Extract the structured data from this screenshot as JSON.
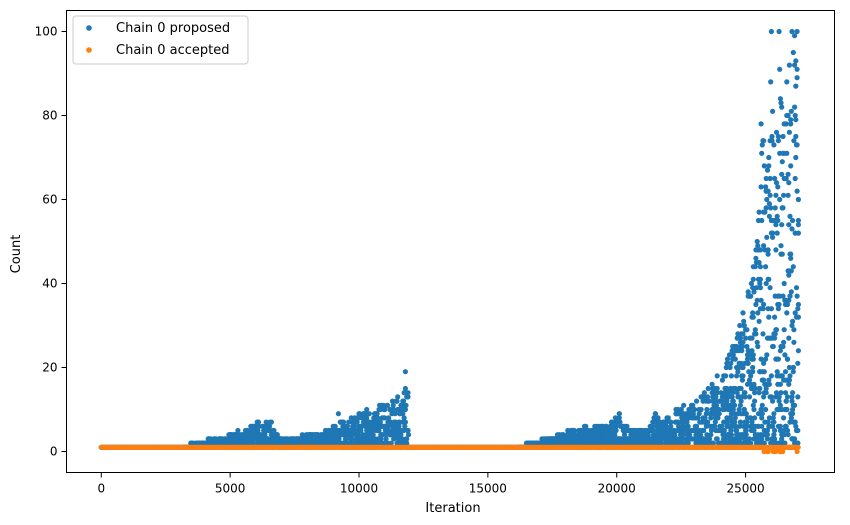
{
  "chart_data": {
    "type": "scatter",
    "title": "",
    "xlabel": "Iteration",
    "ylabel": "Count",
    "xlim": [
      -1350,
      28450
    ],
    "ylim": [
      -5,
      105
    ],
    "xticks": [
      0,
      5000,
      10000,
      15000,
      20000,
      25000
    ],
    "yticks": [
      0,
      20,
      40,
      60,
      80,
      100
    ],
    "legend": {
      "position": "top-left"
    },
    "series": [
      {
        "name": "Chain 0 proposed",
        "color": "#1f77b4",
        "marker": "circle",
        "description_points": [
          [
            0,
            1
          ],
          [
            1000,
            1
          ],
          [
            2000,
            1
          ],
          [
            3000,
            1
          ],
          [
            3800,
            2
          ],
          [
            4200,
            3
          ],
          [
            4600,
            3
          ],
          [
            5000,
            4
          ],
          [
            5300,
            5
          ],
          [
            5600,
            5
          ],
          [
            5900,
            6
          ],
          [
            6100,
            7
          ],
          [
            6400,
            7
          ],
          [
            6600,
            7
          ],
          [
            6700,
            5
          ],
          [
            7000,
            3
          ],
          [
            7500,
            3
          ],
          [
            8000,
            4
          ],
          [
            8400,
            4
          ],
          [
            8800,
            5
          ],
          [
            9000,
            6
          ],
          [
            9200,
            9
          ],
          [
            9400,
            7
          ],
          [
            9700,
            8
          ],
          [
            10000,
            9
          ],
          [
            10300,
            10
          ],
          [
            10600,
            9
          ],
          [
            10800,
            11
          ],
          [
            11100,
            11
          ],
          [
            11300,
            12
          ],
          [
            11500,
            13
          ],
          [
            11700,
            12
          ],
          [
            11800,
            19
          ],
          [
            11900,
            14
          ],
          [
            11950,
            1
          ],
          [
            13000,
            1
          ],
          [
            14000,
            1
          ],
          [
            15000,
            1
          ],
          [
            16000,
            1
          ],
          [
            16800,
            2
          ],
          [
            17200,
            3
          ],
          [
            17700,
            4
          ],
          [
            18300,
            5
          ],
          [
            18800,
            6
          ],
          [
            19300,
            6
          ],
          [
            19800,
            7
          ],
          [
            20100,
            9
          ],
          [
            20400,
            6
          ],
          [
            20700,
            5
          ],
          [
            21000,
            5
          ],
          [
            21300,
            6
          ],
          [
            21500,
            9
          ],
          [
            21800,
            7
          ],
          [
            22000,
            8
          ],
          [
            22300,
            10
          ],
          [
            22600,
            11
          ],
          [
            22900,
            11
          ],
          [
            23100,
            12
          ],
          [
            23400,
            14
          ],
          [
            23700,
            16
          ],
          [
            23900,
            18
          ],
          [
            24100,
            17
          ],
          [
            24300,
            22
          ],
          [
            24500,
            25
          ],
          [
            24700,
            28
          ],
          [
            24900,
            33
          ],
          [
            25100,
            38
          ],
          [
            25300,
            44
          ],
          [
            25400,
            48
          ],
          [
            25500,
            55
          ],
          [
            25600,
            78
          ],
          [
            25700,
            74
          ],
          [
            25800,
            65
          ],
          [
            25900,
            70
          ],
          [
            26000,
            100
          ],
          [
            26100,
            73
          ],
          [
            26200,
            76
          ],
          [
            26300,
            100
          ],
          [
            26400,
            82
          ],
          [
            26500,
            78
          ],
          [
            26600,
            88
          ],
          [
            26700,
            92
          ],
          [
            26750,
            79
          ],
          [
            26800,
            100
          ],
          [
            26850,
            95
          ],
          [
            26900,
            99
          ],
          [
            26950,
            93
          ],
          [
            27000,
            100
          ],
          [
            27050,
            60
          ]
        ]
      },
      {
        "name": "Chain 0 accepted",
        "color": "#ff7f0e",
        "marker": "circle",
        "description_points": [
          [
            0,
            1
          ],
          [
            2000,
            1
          ],
          [
            4000,
            1
          ],
          [
            6000,
            1
          ],
          [
            8000,
            1
          ],
          [
            10000,
            1
          ],
          [
            12000,
            1
          ],
          [
            14000,
            1
          ],
          [
            16000,
            1
          ],
          [
            18000,
            1
          ],
          [
            20000,
            1
          ],
          [
            22000,
            1
          ],
          [
            24000,
            1
          ],
          [
            25800,
            0
          ],
          [
            26500,
            0
          ],
          [
            27000,
            1
          ]
        ]
      }
    ]
  }
}
